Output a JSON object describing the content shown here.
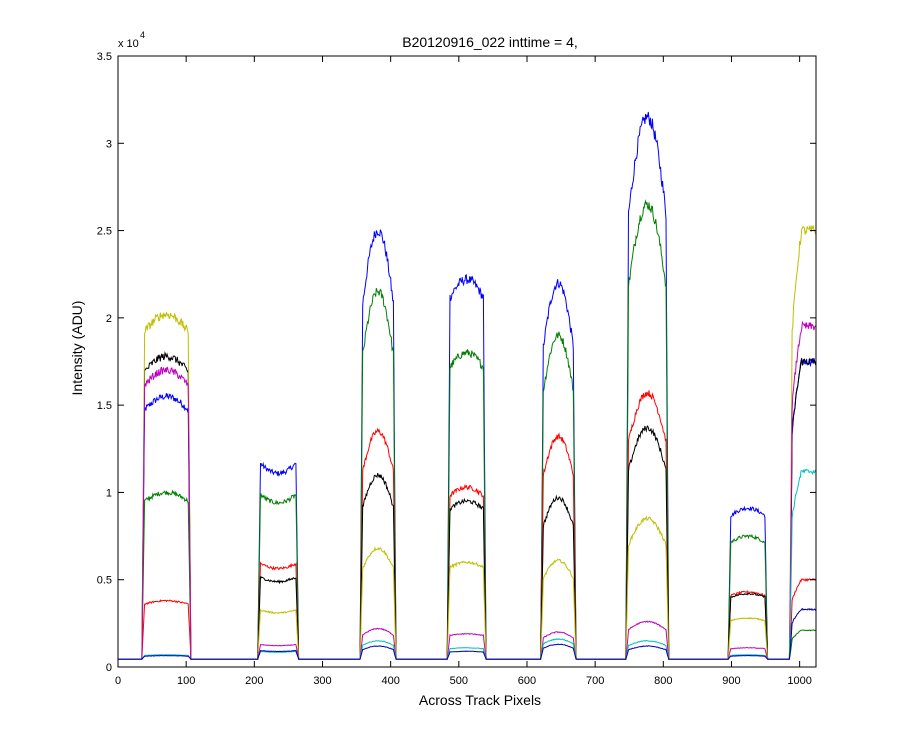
{
  "chart_data": {
    "type": "line",
    "title": "B20120916_022 inttime = 4,",
    "xlabel": "Across Track Pixels",
    "ylabel": "Intensity (ADU)",
    "y_multiplier_label": {
      "base": "x 10",
      "exponent": "4"
    },
    "xlim": [
      0,
      1024
    ],
    "ylim": [
      0,
      35000
    ],
    "xticks": [
      0,
      100,
      200,
      300,
      400,
      500,
      600,
      700,
      800,
      900,
      1000
    ],
    "yticks": [
      0,
      5000,
      10000,
      15000,
      20000,
      25000,
      30000,
      35000
    ],
    "xtick_labels": [
      "0",
      "100",
      "200",
      "300",
      "400",
      "500",
      "600",
      "700",
      "800",
      "900",
      "1000"
    ],
    "ytick_labels": [
      "0",
      "0.5",
      "1",
      "1.5",
      "2",
      "2.5",
      "3",
      "3.5"
    ],
    "grid": false,
    "baseline": 450,
    "regions": [
      {
        "start": 35,
        "end": 107,
        "shape": "flat"
      },
      {
        "start": 205,
        "end": 265,
        "shape": "dip"
      },
      {
        "start": 355,
        "end": 408,
        "shape": "peak"
      },
      {
        "start": 483,
        "end": 540,
        "shape": "flat"
      },
      {
        "start": 620,
        "end": 672,
        "shape": "peak"
      },
      {
        "start": 745,
        "end": 808,
        "shape": "peak"
      },
      {
        "start": 895,
        "end": 953,
        "shape": "flat"
      },
      {
        "start": 985,
        "end": 1024,
        "shape": "rise"
      }
    ],
    "series": [
      {
        "color": "#0000ff",
        "levels": [
          15500,
          11800,
          25000,
          22200,
          22000,
          31500,
          9100,
          17500
        ]
      },
      {
        "color": "#008000",
        "levels": [
          10000,
          10000,
          21500,
          18000,
          19000,
          26500,
          7500,
          2100
        ]
      },
      {
        "color": "#ff0000",
        "levels": [
          3800,
          6000,
          13500,
          10300,
          13200,
          15700,
          4300,
          5000
        ]
      },
      {
        "color": "#000000",
        "levels": [
          17800,
          5200,
          11000,
          9500,
          9700,
          13700,
          4200,
          17500
        ]
      },
      {
        "color": "#bfbf00",
        "levels": [
          20200,
          3300,
          6800,
          6000,
          6100,
          8500,
          2800,
          25000
        ]
      },
      {
        "color": "#bf00bf",
        "levels": [
          17000,
          1300,
          2200,
          1900,
          2000,
          2600,
          1100,
          19500
        ]
      },
      {
        "color": "#00bfbf",
        "levels": [
          700,
          900,
          1500,
          1100,
          1600,
          1500,
          700,
          11200
        ]
      },
      {
        "color": "#0000aa",
        "levels": [
          650,
          950,
          1200,
          900,
          1300,
          1200,
          650,
          3300
        ]
      }
    ]
  }
}
